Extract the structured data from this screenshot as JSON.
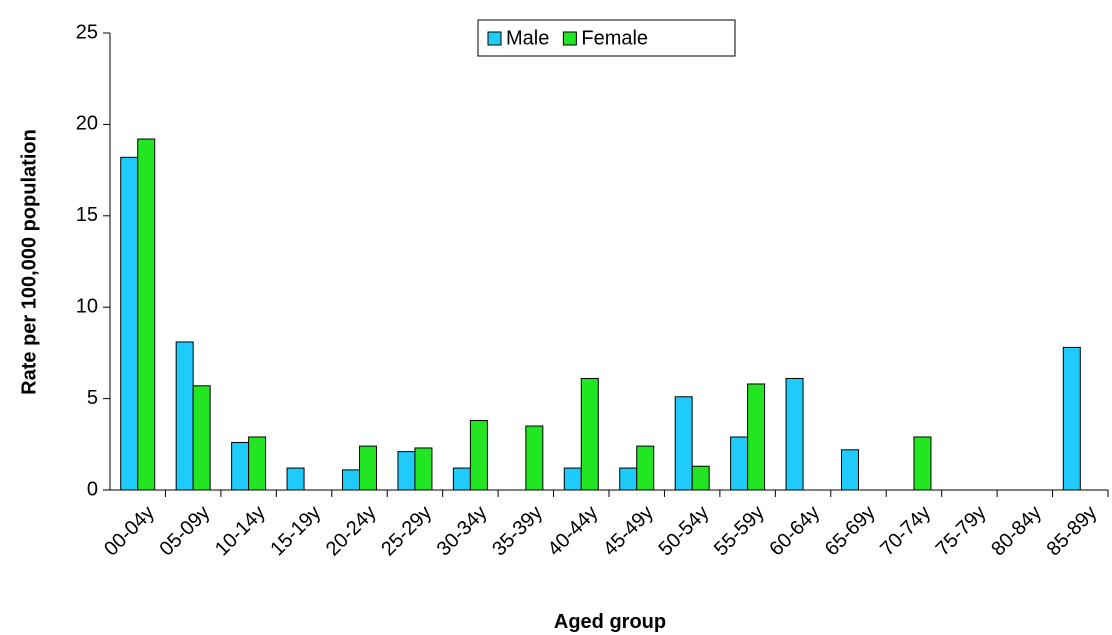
{
  "chart_data": {
    "type": "bar",
    "x_label": "Aged group",
    "y_label": "Rate per 100,000 population",
    "categories": [
      "00-04y",
      "05-09y",
      "10-14y",
      "15-19y",
      "20-24y",
      "25-29y",
      "30-34y",
      "35-39y",
      "40-44y",
      "45-49y",
      "50-54y",
      "55-59y",
      "60-64y",
      "65-69y",
      "70-74y",
      "75-79y",
      "80-84y",
      "85-89y"
    ],
    "series": [
      {
        "name": "Male",
        "color": "#1ecbfa",
        "values": [
          18.2,
          8.1,
          2.6,
          1.2,
          1.1,
          2.1,
          1.2,
          0,
          1.2,
          1.2,
          5.1,
          2.9,
          6.1,
          2.2,
          0,
          0,
          0,
          7.8
        ]
      },
      {
        "name": "Female",
        "color": "#22e622",
        "values": [
          19.2,
          5.7,
          2.9,
          0,
          2.4,
          2.3,
          3.8,
          3.5,
          6.1,
          2.4,
          1.3,
          5.8,
          0,
          0,
          2.9,
          0,
          0,
          0
        ]
      }
    ],
    "ylim": [
      0,
      25
    ],
    "yticks": [
      0,
      5,
      10,
      15,
      20,
      25
    ],
    "legend": "top"
  }
}
